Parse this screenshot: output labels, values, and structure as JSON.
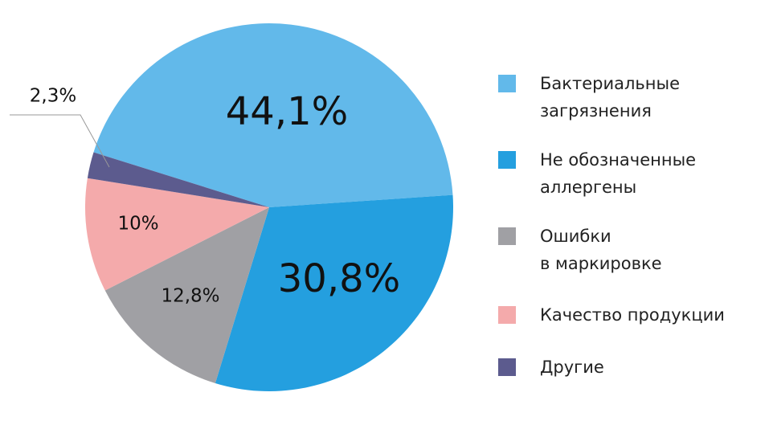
{
  "chart_data": {
    "type": "pie",
    "categories": [
      "Бактериальные\nзагрязнения",
      "Не обозначенные\nаллергены",
      "Ошибки\nв маркировке",
      "Качество продукции",
      "Другие"
    ],
    "values": [
      44.1,
      30.8,
      12.8,
      10,
      2.3
    ],
    "value_labels": [
      "44,1%",
      "30,8%",
      "12,8%",
      "10%",
      "2,3%"
    ],
    "colors": [
      "#62b9ea",
      "#249fdf",
      "#a0a0a4",
      "#f4aaab",
      "#5c5b8e"
    ],
    "legend": "right"
  }
}
